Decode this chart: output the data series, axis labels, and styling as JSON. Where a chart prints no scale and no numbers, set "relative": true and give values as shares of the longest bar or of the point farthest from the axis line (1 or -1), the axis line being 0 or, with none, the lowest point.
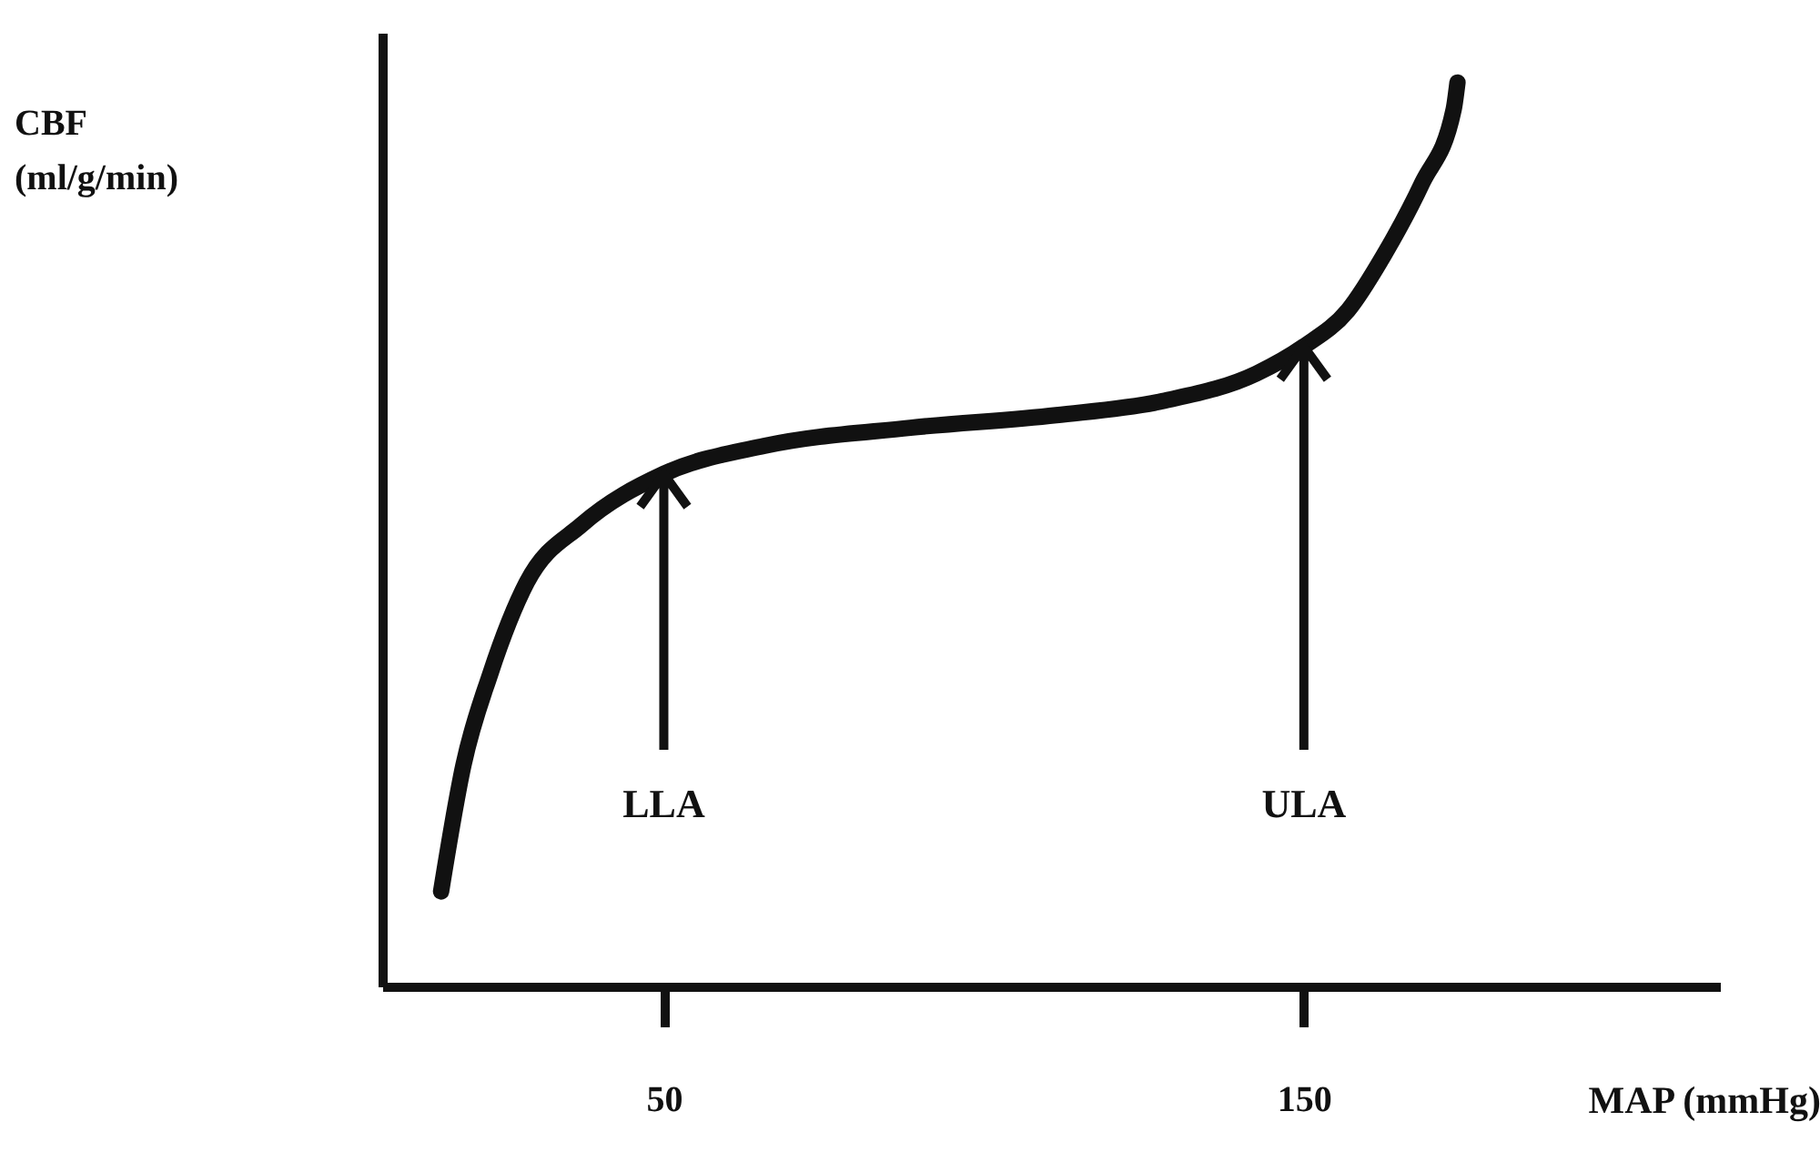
{
  "chart_data": {
    "type": "line",
    "relative": true,
    "xlabel": "MAP (mmHg)",
    "xlim": [
      6,
      215
    ],
    "xticks": [
      50,
      150
    ],
    "line_style": "solid",
    "series": [
      {
        "color": "#111111",
        "x": [
          15.2,
          18.7,
          22.9,
          28.6,
          37.2,
          50,
          65.7,
          88.5,
          111.3,
          128.3,
          142.6,
          150,
          156.9,
          162.5,
          168.5,
          173.4,
          174
        ],
        "values": [
          0.105,
          0.245,
          0.346,
          0.447,
          0.511,
          0.567,
          0.598,
          0.618,
          0.632,
          0.648,
          0.678,
          0.708,
          0.748,
          0.809,
          0.889,
          0.97,
          1
        ]
      }
    ],
    "annotations": [
      "CBF (ml/g/min)",
      {
        "text": "LLA",
        "x": 50,
        "y": 0.567
      },
      {
        "text": "ULA",
        "x": 150,
        "y": 0.708
      }
    ]
  }
}
